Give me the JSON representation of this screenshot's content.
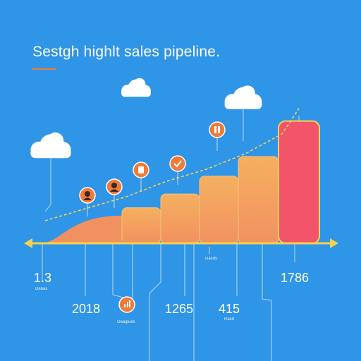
{
  "title": "Sestgh highlt sales pipeline.",
  "colors": {
    "background": "#2f95e6",
    "axis": "#f5d24a",
    "trend": "#f5d24a",
    "stage_start": "#f29160",
    "stage_end": "#f5b060",
    "highlight": "#f2556a",
    "marker": "#f07a3a"
  },
  "labels": {
    "left_value": "1.3",
    "left_caption": "Debas",
    "year": "2018",
    "center_caption": "Oaaipues",
    "mid_value": "1265",
    "mid_caption": "Dasds",
    "right_value": "415",
    "right_caption": "Rasd",
    "top_value": "1786"
  },
  "chart_data": {
    "type": "bar",
    "title": "Sestgh highlt sales pipeline.",
    "categories": [
      "",
      "",
      "",
      "",
      "",
      ""
    ],
    "values": [
      14,
      18,
      25,
      34,
      44,
      62
    ],
    "highlight_index": 5,
    "trend": [
      10,
      16,
      22,
      30,
      36,
      44,
      54,
      67
    ],
    "ylim": [
      0,
      64
    ],
    "grid": false,
    "legend": "none"
  },
  "markers": [
    {
      "icon": "avatar-icon"
    },
    {
      "icon": "avatar-icon"
    },
    {
      "icon": "document-icon"
    },
    {
      "icon": "check-icon"
    },
    {
      "icon": "flag-icon"
    },
    {
      "icon": "chart-icon"
    }
  ]
}
